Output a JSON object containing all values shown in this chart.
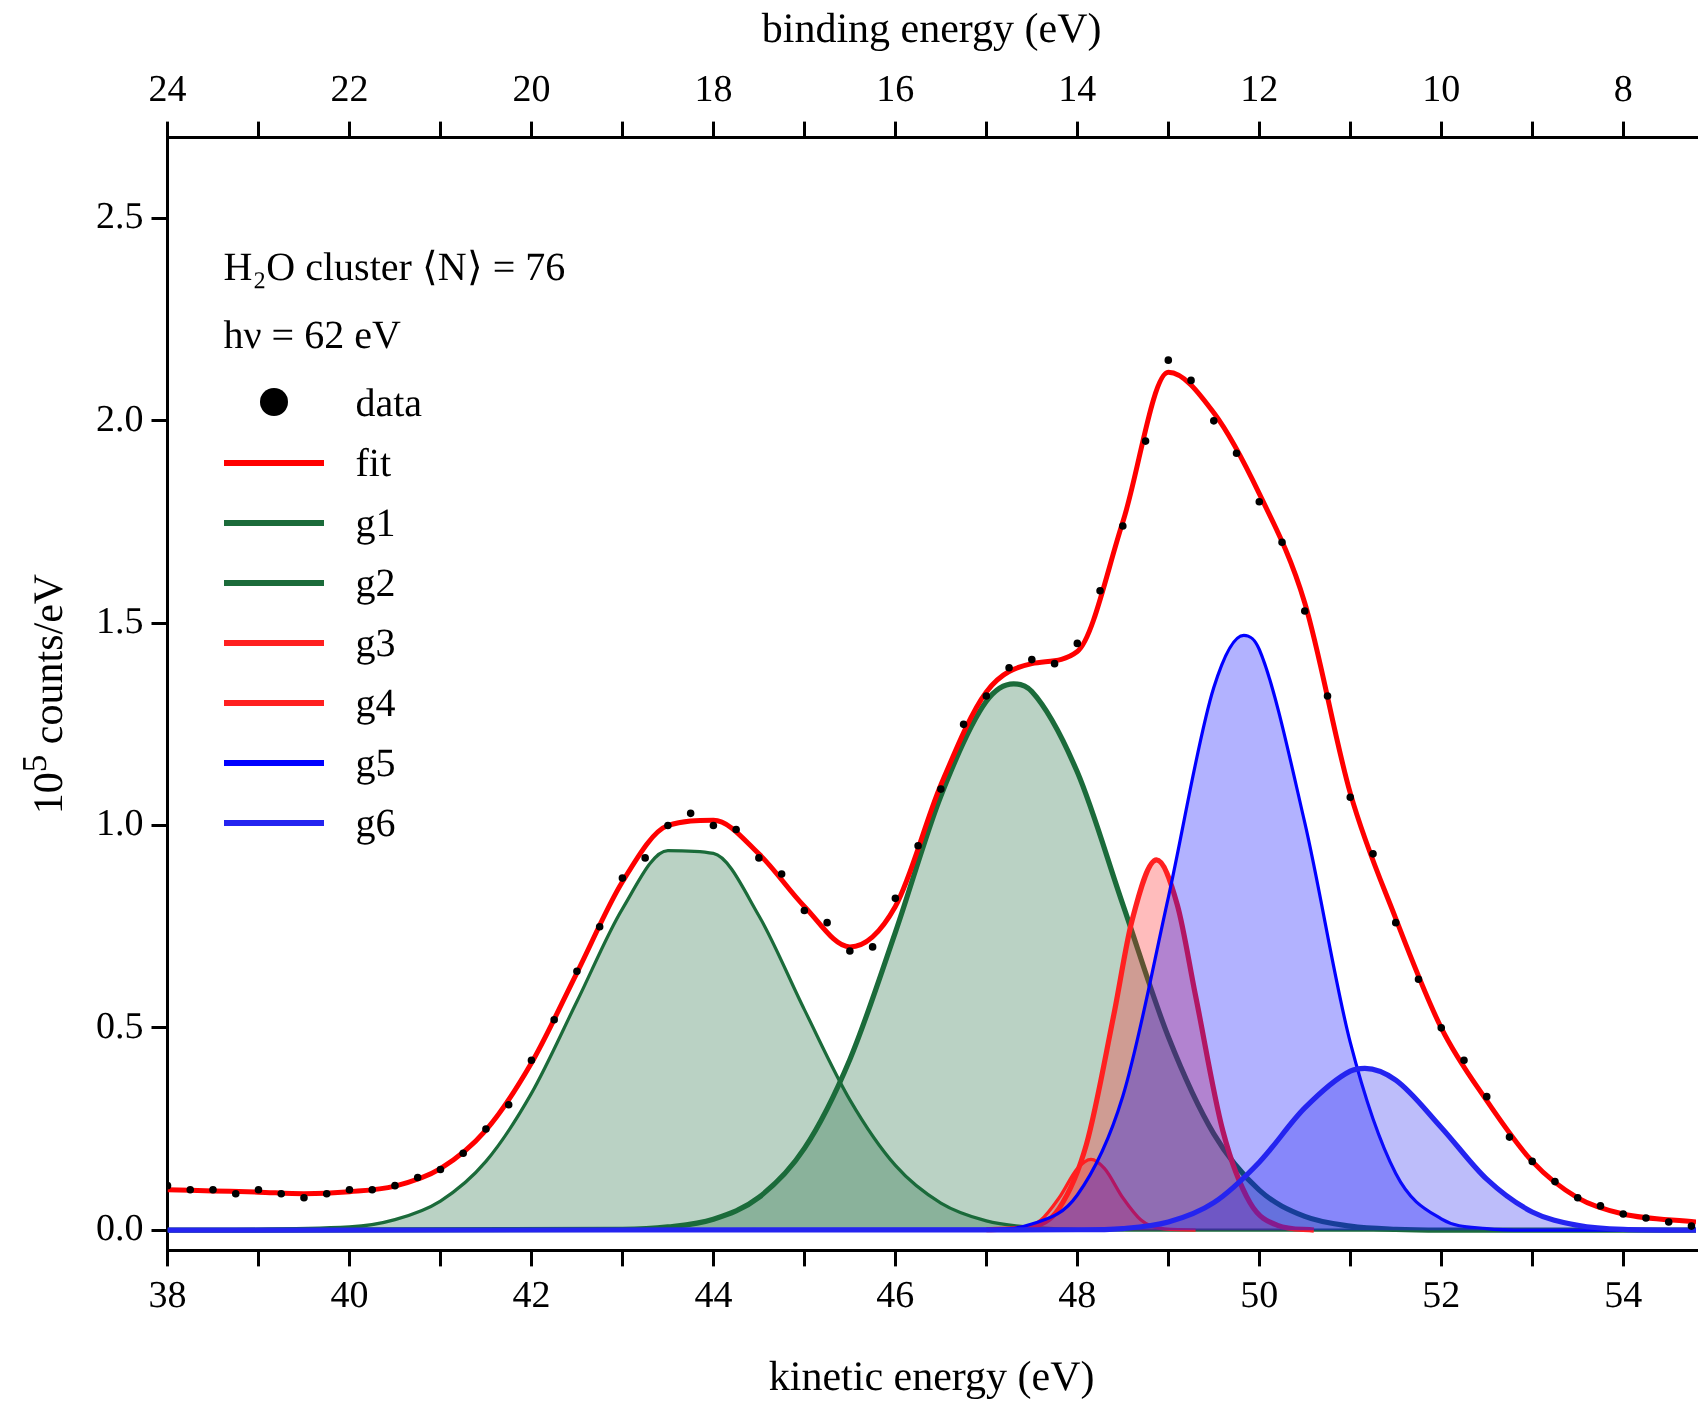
{
  "chart_data": {
    "type": "area",
    "xlabel": "kinetic energy (eV)",
    "x2label": "binding energy (eV)",
    "ylabel": "10$^{5}$ counts/eV",
    "xlim": [
      38,
      54.8
    ],
    "xticks": [
      38,
      {
        "value": 39,
        "label": null
      },
      40,
      {
        "value": 41,
        "label": null
      },
      42,
      {
        "value": 43,
        "label": null
      },
      44,
      {
        "value": 45,
        "label": null
      },
      46,
      {
        "value": 47,
        "label": null
      },
      48,
      {
        "value": 49,
        "label": null
      },
      50,
      {
        "value": 51,
        "label": null
      },
      52,
      {
        "value": 53,
        "label": null
      },
      54
    ],
    "x2lim": [
      24,
      7.2
    ],
    "x2ticks": [
      24,
      {
        "value": 23,
        "label": null
      },
      22,
      {
        "value": 21,
        "label": null
      },
      20,
      {
        "value": 19,
        "label": null
      },
      18,
      {
        "value": 17,
        "label": null
      },
      16,
      {
        "value": 15,
        "label": null
      },
      14,
      {
        "value": 13,
        "label": null
      },
      12,
      {
        "value": 11,
        "label": null
      },
      10,
      {
        "value": 9,
        "label": null
      },
      8
    ],
    "ylim": [
      -0.05,
      2.7
    ],
    "yticks": [
      {
        "value": 0,
        "label": "0.0"
      },
      {
        "value": 0.5,
        "label": "0.5"
      },
      {
        "value": 1,
        "label": "1.0"
      },
      {
        "value": 1.5,
        "label": "1.5"
      },
      {
        "value": 2,
        "label": "2.0"
      },
      {
        "value": 2.5,
        "label": "2.5"
      }
    ],
    "grid": false,
    "legend": "top left",
    "annotations": [
      "H₂O cluster ⟨N⟩ = 76",
      "hν = 62 eV"
    ],
    "series": [
      {
        "name": "data",
        "type": "scatter",
        "marker": "circle",
        "color": "#000000",
        "x": [
          38,
          38.25,
          38.5,
          38.75,
          39,
          39.25,
          39.5,
          39.75,
          40,
          40.25,
          40.5,
          40.75,
          41,
          41.25,
          41.5,
          41.75,
          42,
          42.25,
          42.5,
          42.75,
          43,
          43.25,
          43.5,
          43.75,
          44,
          44.25,
          44.5,
          44.75,
          45,
          45.25,
          45.5,
          45.75,
          46,
          46.25,
          46.5,
          46.75,
          47,
          47.25,
          47.5,
          47.75,
          48,
          48.25,
          48.5,
          48.75,
          49,
          49.25,
          49.5,
          49.75,
          50,
          50.25,
          50.5,
          50.75,
          51,
          51.25,
          51.5,
          51.75,
          52,
          52.25,
          52.5,
          52.75,
          53,
          53.25,
          53.5,
          53.75,
          54,
          54.25,
          54.5,
          54.75
        ],
        "values": [
          0.11,
          0.1,
          0.1,
          0.09,
          0.1,
          0.09,
          0.08,
          0.09,
          0.1,
          0.1,
          0.11,
          0.13,
          0.15,
          0.19,
          0.25,
          0.31,
          0.42,
          0.52,
          0.64,
          0.75,
          0.87,
          0.92,
          1.0,
          1.03,
          1.0,
          0.99,
          0.92,
          0.88,
          0.79,
          0.76,
          0.69,
          0.7,
          0.82,
          0.95,
          1.09,
          1.25,
          1.32,
          1.39,
          1.41,
          1.4,
          1.45,
          1.58,
          1.74,
          1.95,
          2.15,
          2.1,
          2.0,
          1.92,
          1.8,
          1.7,
          1.53,
          1.32,
          1.07,
          0.93,
          0.76,
          0.62,
          0.5,
          0.42,
          0.33,
          0.23,
          0.17,
          0.12,
          0.08,
          0.06,
          0.04,
          0.03,
          0.02,
          0.01
        ]
      },
      {
        "name": "fit",
        "type": "line",
        "color": "#ff0000",
        "x": [
          38,
          38.5,
          39,
          39.5,
          40,
          40.5,
          41,
          41.5,
          42,
          42.5,
          43,
          43.5,
          44,
          44.5,
          45,
          45.5,
          46,
          46.5,
          47,
          47.5,
          48,
          48.5,
          49,
          49.5,
          50,
          50.5,
          51,
          51.5,
          52,
          52.5,
          53,
          53.5,
          54,
          54.8
        ],
        "values": [
          0.1,
          0.097,
          0.094,
          0.09,
          0.095,
          0.109,
          0.152,
          0.247,
          0.413,
          0.636,
          0.861,
          1.0,
          1.013,
          0.93,
          0.8,
          0.7,
          0.8,
          1.1,
          1.33,
          1.4,
          1.43,
          1.75,
          2.12,
          2.02,
          1.82,
          1.55,
          1.08,
          0.77,
          0.5,
          0.32,
          0.17,
          0.08,
          0.04,
          0.02
        ]
      },
      {
        "name": "g1",
        "color": "#1b6b3a",
        "x": [
          38,
          40,
          40.5,
          41,
          41.5,
          42,
          42.5,
          43,
          43.5,
          44,
          44.5,
          45,
          45.5,
          46,
          46.5,
          47,
          47.5,
          48,
          49,
          54.8
        ],
        "values": [
          0,
          0.008,
          0.026,
          0.072,
          0.17,
          0.338,
          0.565,
          0.794,
          0.938,
          0.931,
          0.777,
          0.545,
          0.322,
          0.16,
          0.067,
          0.023,
          0.007,
          0.002,
          0,
          0
        ]
      },
      {
        "name": "g2",
        "color": "#1b6b3a",
        "x": [
          38,
          43,
          43.5,
          44,
          44.5,
          45,
          45.5,
          46,
          46.5,
          47,
          47.3,
          47.5,
          48,
          48.5,
          49,
          49.5,
          50,
          50.5,
          51,
          51.5,
          52,
          54.8
        ],
        "values": [
          0,
          0.002,
          0.008,
          0.027,
          0.081,
          0.202,
          0.422,
          0.736,
          1.073,
          1.307,
          1.35,
          1.331,
          1.132,
          0.805,
          0.478,
          0.238,
          0.099,
          0.034,
          0.01,
          0.002,
          0,
          0
        ]
      },
      {
        "name": "g3",
        "color": "#ff2020",
        "x": [
          47,
          47.4,
          47.6,
          47.8,
          48,
          48.15,
          48.3,
          48.5,
          48.7,
          48.9,
          49.3
        ],
        "values": [
          0,
          0.005,
          0.025,
          0.08,
          0.152,
          0.175,
          0.152,
          0.08,
          0.025,
          0.005,
          0
        ]
      },
      {
        "name": "g4",
        "color": "#ff2020",
        "x": [
          47,
          47.5,
          47.8,
          48.1,
          48.4,
          48.6,
          48.87,
          49.1,
          49.3,
          49.6,
          49.9,
          50.2,
          50.6
        ],
        "values": [
          0.001,
          0.009,
          0.054,
          0.212,
          0.531,
          0.764,
          0.915,
          0.803,
          0.579,
          0.245,
          0.067,
          0.012,
          0
        ]
      },
      {
        "name": "g5",
        "color": "#0000ff",
        "x": [
          38,
          47,
          47.5,
          48,
          48.5,
          49,
          49.5,
          49.83,
          50,
          50.5,
          51,
          51.5,
          52,
          52.5,
          53,
          54.8
        ],
        "values": [
          0,
          0.002,
          0.015,
          0.087,
          0.331,
          0.822,
          1.341,
          1.47,
          1.435,
          1.007,
          0.464,
          0.14,
          0.028,
          0.004,
          0,
          0
        ]
      },
      {
        "name": "g6",
        "color": "#2424f0",
        "x": [
          38,
          48,
          48.5,
          49,
          49.5,
          50,
          50.5,
          51,
          51.16,
          51.5,
          52,
          52.5,
          53,
          53.5,
          54,
          54.8
        ],
        "values": [
          0,
          0.001,
          0.004,
          0.02,
          0.068,
          0.168,
          0.302,
          0.393,
          0.4,
          0.371,
          0.254,
          0.126,
          0.045,
          0.012,
          0.002,
          0
        ]
      }
    ]
  }
}
